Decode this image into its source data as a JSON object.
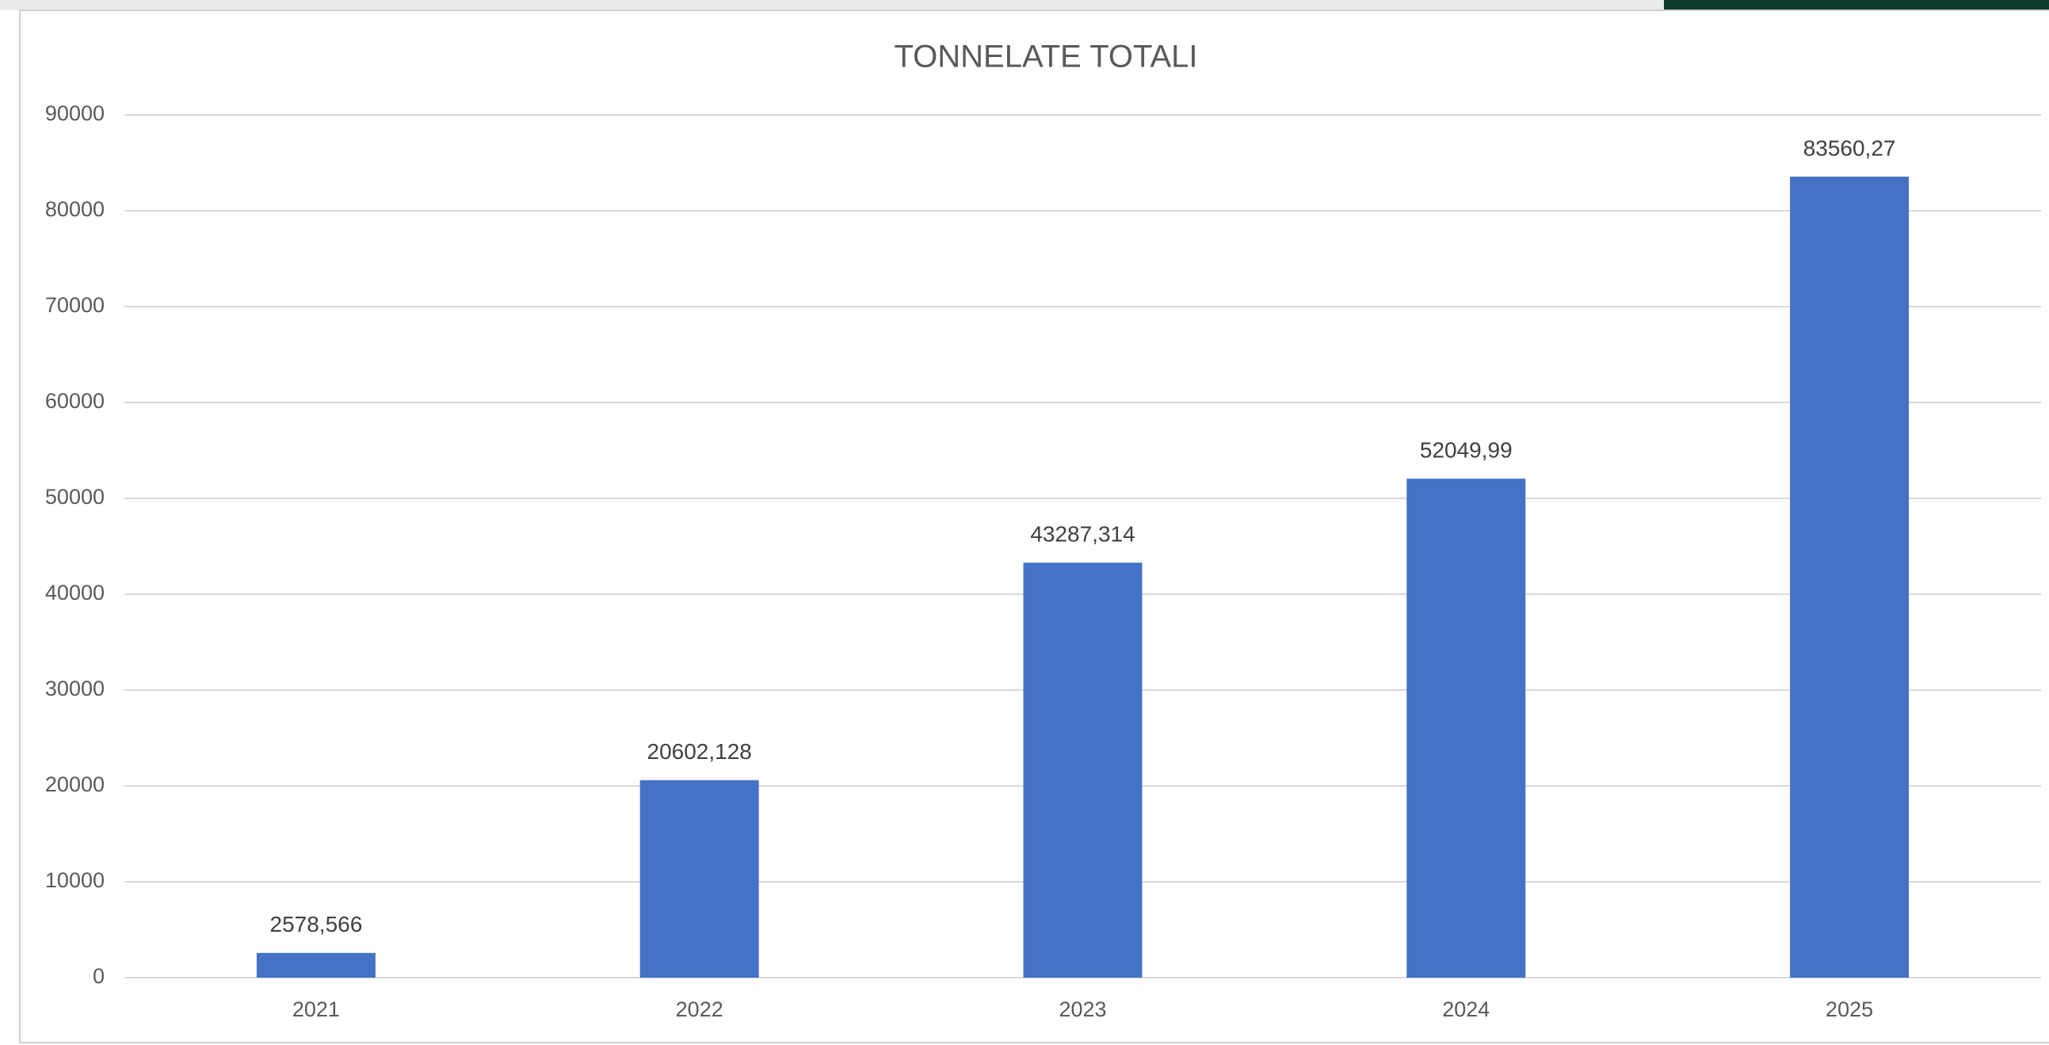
{
  "chart_data": {
    "type": "bar",
    "title": "TONNELATE TOTALI",
    "categories": [
      "2021",
      "2022",
      "2023",
      "2024",
      "2025"
    ],
    "values": [
      2578.566,
      20602.128,
      43287.314,
      52049.99,
      83560.27
    ],
    "value_labels": [
      "2578,566",
      "20602,128",
      "43287,314",
      "52049,99",
      "83560,27"
    ],
    "color": "#4472c4",
    "ylim": [
      0,
      90000
    ],
    "yticks": [
      0,
      10000,
      20000,
      30000,
      40000,
      50000,
      60000,
      70000,
      80000,
      90000
    ],
    "grid": true
  }
}
